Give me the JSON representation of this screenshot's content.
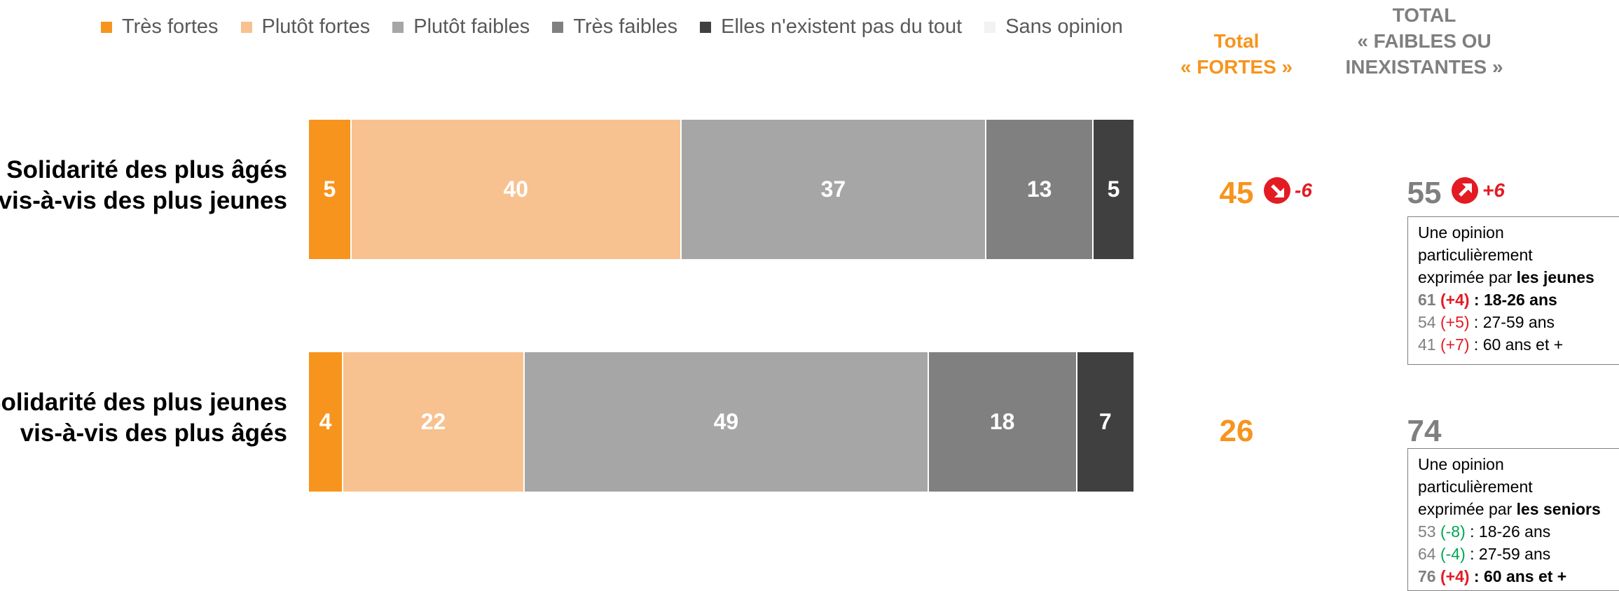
{
  "chart_data": {
    "type": "stacked_bar_h",
    "categories": [
      [
        "Solidarité des plus âgés",
        "vis-à-vis des plus jeunes"
      ],
      [
        "Solidarité des plus jeunes",
        "vis-à-vis des plus âgés"
      ]
    ],
    "series": [
      {
        "name": "Très fortes",
        "color": "#f7941d",
        "values": [
          5,
          4
        ]
      },
      {
        "name": "Plutôt fortes",
        "color": "#f8c190",
        "values": [
          40,
          22
        ]
      },
      {
        "name": "Plutôt faibles",
        "color": "#a6a6a6",
        "values": [
          37,
          49
        ]
      },
      {
        "name": "Très faibles",
        "color": "#808080",
        "values": [
          13,
          18
        ]
      },
      {
        "name": "Elles n'existent pas du tout",
        "color": "#404040",
        "values": [
          5,
          7
        ]
      },
      {
        "name": "Sans opinion",
        "color": "#f2f2f2",
        "values": [
          0,
          0
        ]
      }
    ],
    "xlim": [
      0,
      100
    ],
    "totals": [
      {
        "header": [
          "Total",
          "« FORTES »"
        ],
        "color": "#f7941d",
        "values": [
          45,
          26
        ],
        "changes": [
          "-6",
          null
        ],
        "arrow": "down"
      },
      {
        "header": [
          "TOTAL",
          "« FAIBLES OU",
          "INEXISTANTES »"
        ],
        "color": "#7f7f7f",
        "values": [
          55,
          74
        ],
        "changes": [
          "+6",
          null
        ],
        "arrow": "up"
      }
    ],
    "notes": [
      {
        "intro": [
          "Une opinion",
          "particulièrement",
          "exprimée par"
        ],
        "highlight": "les jeunes",
        "rows": [
          {
            "value": 61,
            "change": "(+4)",
            "change_color": "#e31b23",
            "label": ": 18-26 ans",
            "bold": true
          },
          {
            "value": 54,
            "change": "(+5)",
            "change_color": "#e31b23",
            "label": ": 27-59 ans",
            "bold": false
          },
          {
            "value": 41,
            "change": "(+7)",
            "change_color": "#e31b23",
            "label": ": 60 ans et +",
            "bold": false
          }
        ]
      },
      {
        "intro": [
          "Une opinion",
          "particulièrement",
          "exprimée par"
        ],
        "highlight": "les seniors",
        "rows": [
          {
            "value": 53,
            "change": "(-8)",
            "change_color": "#00a651",
            "label": ": 18-26 ans",
            "bold": false
          },
          {
            "value": 64,
            "change": "(-4)",
            "change_color": "#00a651",
            "label": ": 27-59 ans",
            "bold": false
          },
          {
            "value": 76,
            "change": "(+4)",
            "change_color": "#e31b23",
            "label": ": 60 ans et +",
            "bold": true
          }
        ]
      }
    ]
  }
}
